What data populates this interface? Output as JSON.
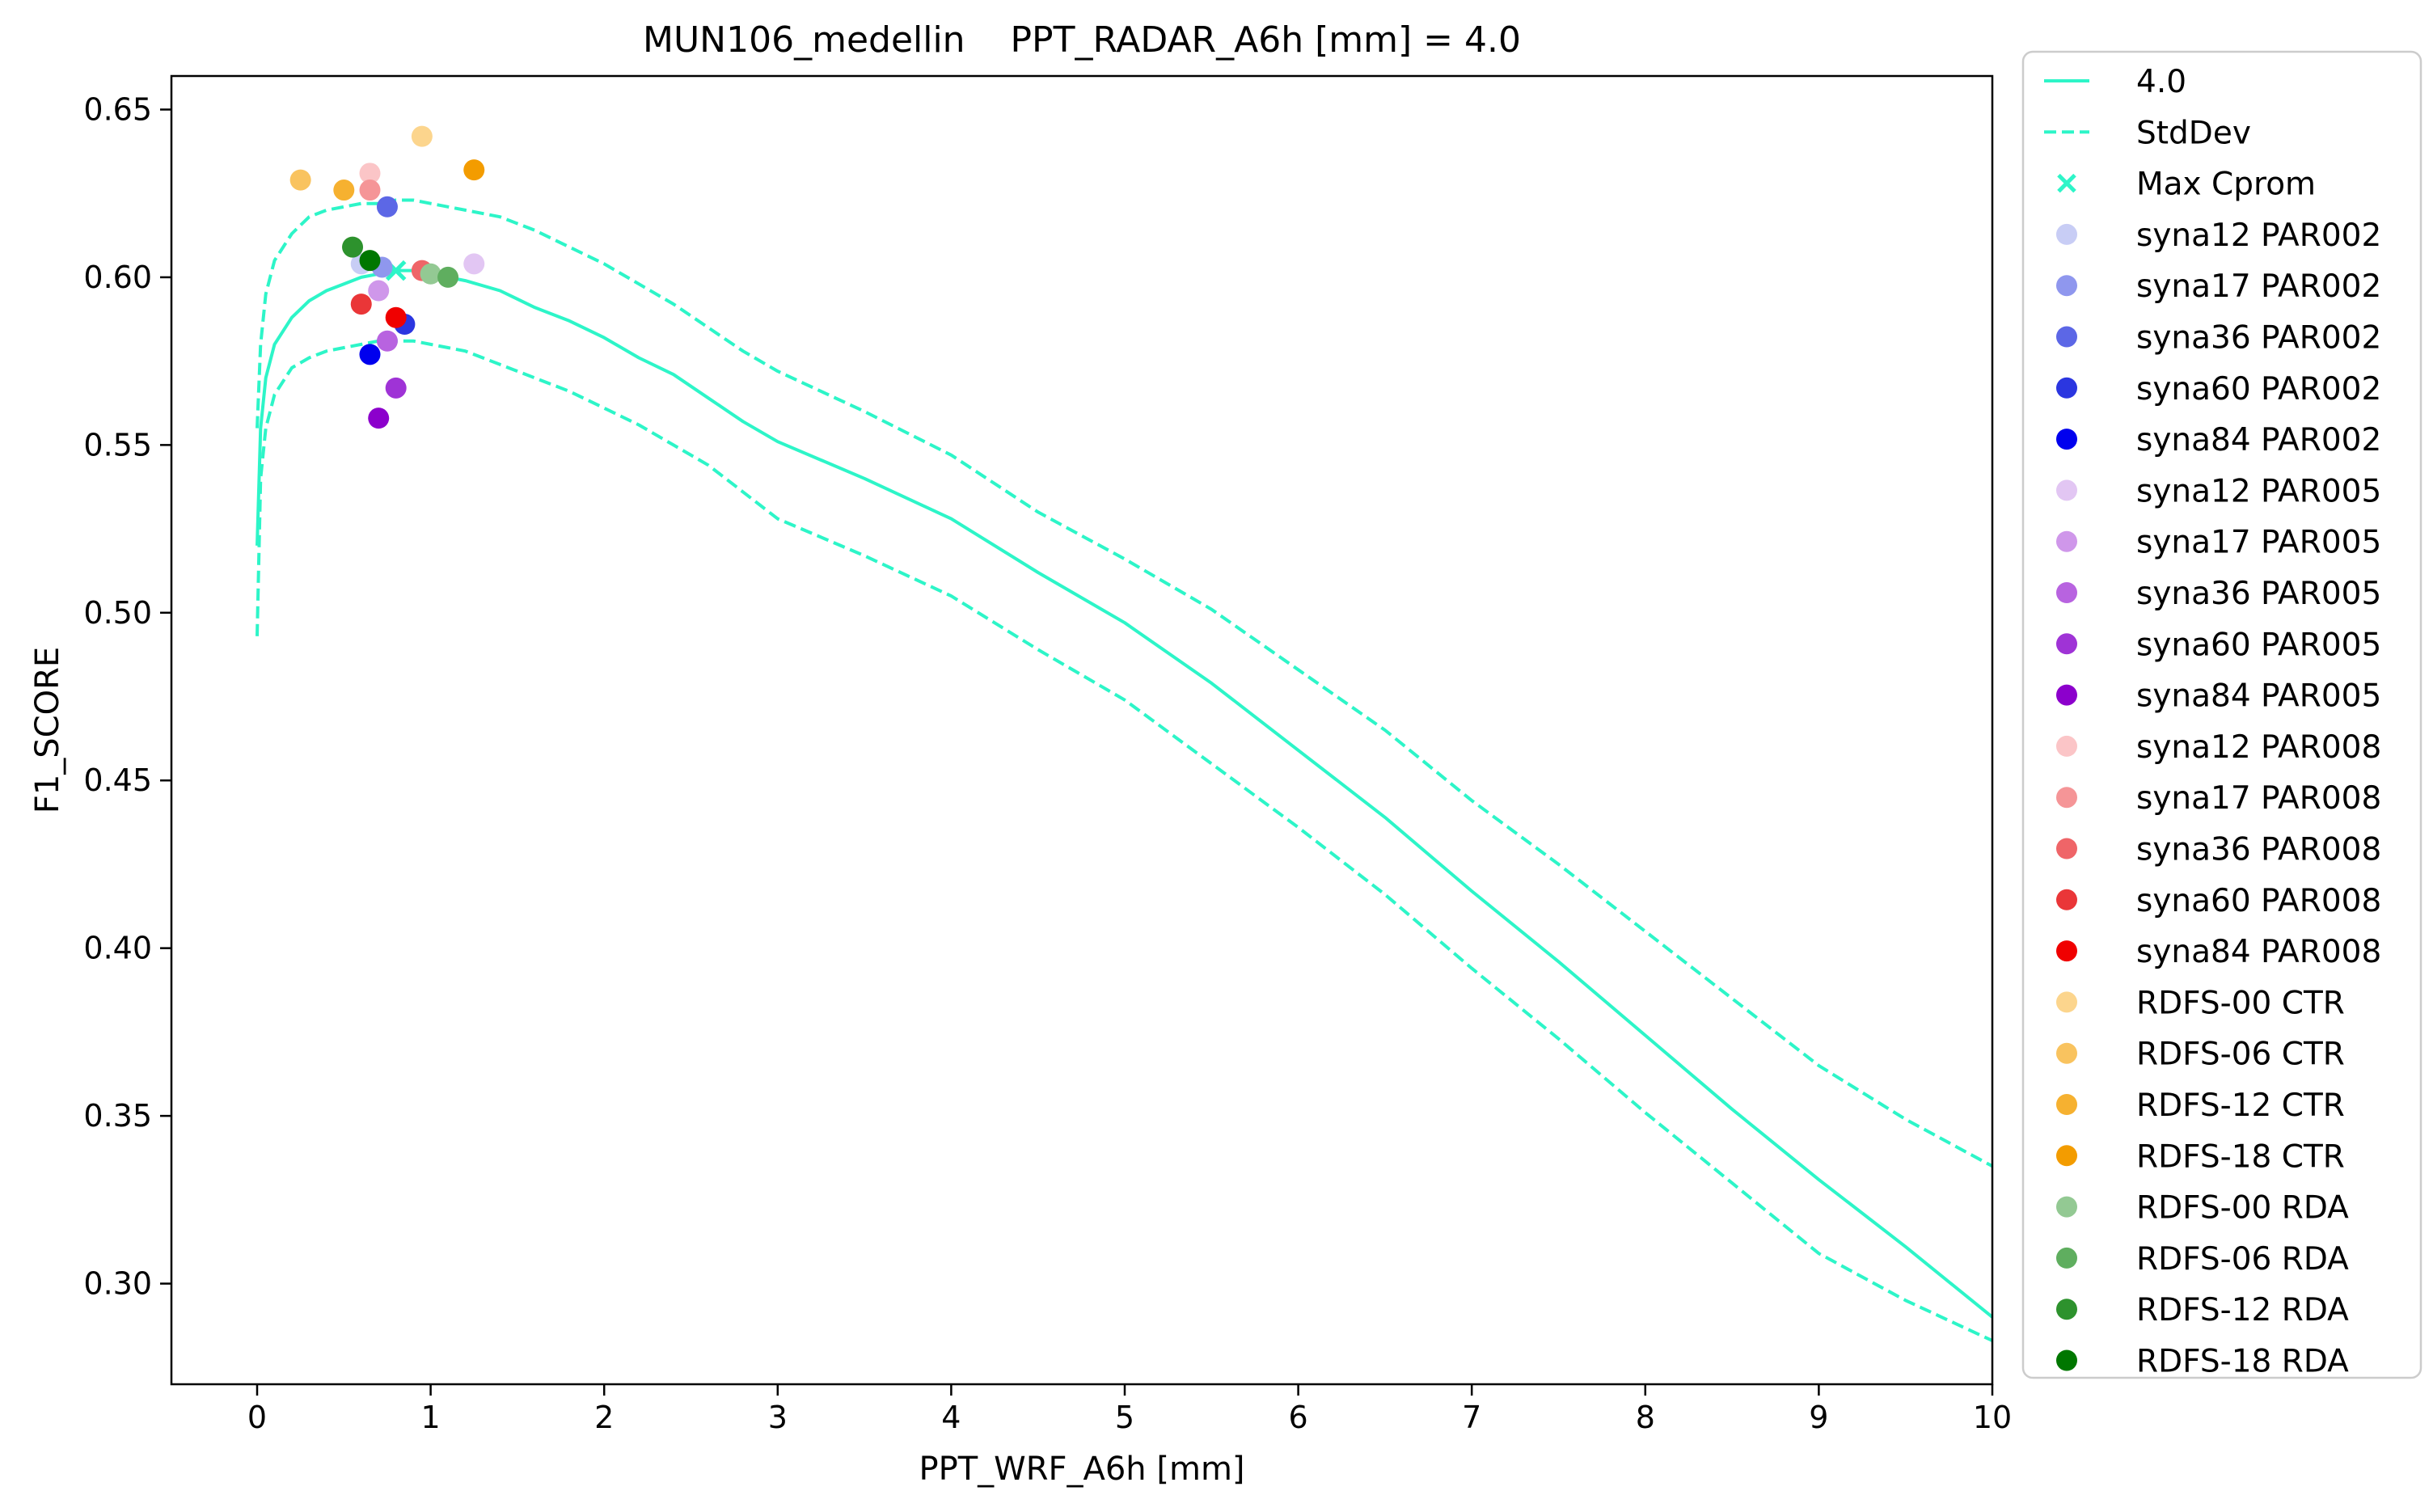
{
  "chart_data": {
    "type": "line",
    "title": "MUN106_medellin    PPT_RADAR_A6h [mm] = 4.0",
    "xlabel": "PPT_WRF_A6h [mm]",
    "ylabel": "F1_SCORE",
    "xlim": [
      -0.5,
      10
    ],
    "ylim": [
      0.27,
      0.66
    ],
    "xticks": [
      0,
      1,
      2,
      3,
      4,
      5,
      6,
      7,
      8,
      9,
      10
    ],
    "xtick_labels": [
      "0",
      "1",
      "2",
      "3",
      "4",
      "5",
      "6",
      "7",
      "8",
      "9",
      "10"
    ],
    "yticks": [
      0.3,
      0.35,
      0.4,
      0.45,
      0.5,
      0.55,
      0.6,
      0.65
    ],
    "ytick_labels": [
      "0.30",
      "0.35",
      "0.40",
      "0.45",
      "0.50",
      "0.55",
      "0.60",
      "0.65"
    ],
    "grid": false,
    "legend_position": "outside-right",
    "line_color": "#2df5c8",
    "series": [
      {
        "name": "4.0",
        "style": "solid",
        "x": [
          0,
          0.02,
          0.05,
          0.1,
          0.2,
          0.3,
          0.4,
          0.5,
          0.6,
          0.7,
          0.8,
          0.9,
          1.0,
          1.1,
          1.2,
          1.4,
          1.6,
          1.8,
          2.0,
          2.2,
          2.4,
          2.6,
          2.8,
          3.0,
          3.5,
          4.0,
          4.5,
          5.0,
          5.5,
          6.0,
          6.5,
          7.0,
          7.5,
          8.0,
          8.5,
          9.0,
          9.5,
          10.0
        ],
        "y": [
          0.52,
          0.555,
          0.57,
          0.58,
          0.588,
          0.593,
          0.596,
          0.598,
          0.6,
          0.601,
          0.602,
          0.602,
          0.601,
          0.6,
          0.599,
          0.596,
          0.591,
          0.587,
          0.582,
          0.576,
          0.571,
          0.564,
          0.557,
          0.551,
          0.54,
          0.528,
          0.512,
          0.497,
          0.479,
          0.459,
          0.439,
          0.417,
          0.396,
          0.374,
          0.352,
          0.331,
          0.311,
          0.29
        ]
      },
      {
        "name": "StdDev",
        "style": "dashed",
        "x": [
          0,
          0.02,
          0.05,
          0.1,
          0.2,
          0.3,
          0.4,
          0.5,
          0.6,
          0.7,
          0.8,
          0.9,
          1.0,
          1.1,
          1.2,
          1.4,
          1.6,
          1.8,
          2.0,
          2.2,
          2.4,
          2.6,
          2.8,
          3.0,
          3.5,
          4.0,
          4.5,
          5.0,
          5.5,
          6.0,
          6.5,
          7.0,
          7.5,
          8.0,
          8.5,
          9.0,
          9.5,
          10.0
        ],
        "y": [
          0.493,
          0.54,
          0.555,
          0.565,
          0.573,
          0.576,
          0.578,
          0.579,
          0.58,
          0.581,
          0.581,
          0.581,
          0.58,
          0.579,
          0.578,
          0.574,
          0.57,
          0.566,
          0.561,
          0.556,
          0.55,
          0.544,
          0.536,
          0.528,
          0.517,
          0.505,
          0.489,
          0.474,
          0.455,
          0.436,
          0.416,
          0.394,
          0.373,
          0.351,
          0.33,
          0.309,
          0.295,
          0.283
        ]
      },
      {
        "name": "",
        "style": "dashed",
        "x": [
          0,
          0.02,
          0.05,
          0.1,
          0.2,
          0.3,
          0.4,
          0.5,
          0.6,
          0.7,
          0.8,
          0.9,
          1.0,
          1.1,
          1.2,
          1.4,
          1.6,
          1.8,
          2.0,
          2.2,
          2.4,
          2.6,
          2.8,
          3.0,
          3.5,
          4.0,
          4.5,
          5.0,
          5.5,
          6.0,
          6.5,
          7.0,
          7.5,
          8.0,
          8.5,
          9.0,
          9.5,
          10.0
        ],
        "y": [
          0.555,
          0.58,
          0.595,
          0.605,
          0.613,
          0.618,
          0.62,
          0.621,
          0.622,
          0.622,
          0.623,
          0.623,
          0.622,
          0.621,
          0.62,
          0.618,
          0.614,
          0.609,
          0.604,
          0.598,
          0.592,
          0.585,
          0.578,
          0.572,
          0.56,
          0.547,
          0.53,
          0.516,
          0.501,
          0.483,
          0.465,
          0.444,
          0.425,
          0.405,
          0.385,
          0.365,
          0.349,
          0.335
        ]
      }
    ],
    "max_cprom": {
      "name": "Max Cprom",
      "x": 0.8,
      "y": 0.602
    },
    "scatter": [
      {
        "name": "syna12 PAR002",
        "color": "#c8cdf5",
        "x": 0.6,
        "y": 0.604
      },
      {
        "name": "syna17 PAR002",
        "color": "#8f97ee",
        "x": 0.72,
        "y": 0.603
      },
      {
        "name": "syna36 PAR002",
        "color": "#5c67e6",
        "x": 0.75,
        "y": 0.621
      },
      {
        "name": "syna60 PAR002",
        "color": "#2b36e0",
        "x": 0.85,
        "y": 0.586
      },
      {
        "name": "syna84 PAR002",
        "color": "#0000ee",
        "x": 0.65,
        "y": 0.577
      },
      {
        "name": "syna12 PAR005",
        "color": "#e2c6f3",
        "x": 1.25,
        "y": 0.604
      },
      {
        "name": "syna17 PAR005",
        "color": "#cf97ea",
        "x": 0.7,
        "y": 0.596
      },
      {
        "name": "syna36 PAR005",
        "color": "#b863e0",
        "x": 0.75,
        "y": 0.581
      },
      {
        "name": "syna60 PAR005",
        "color": "#9f33d6",
        "x": 0.8,
        "y": 0.567
      },
      {
        "name": "syna84 PAR005",
        "color": "#8c00cc",
        "x": 0.7,
        "y": 0.558
      },
      {
        "name": "syna12 PAR008",
        "color": "#fbc5c7",
        "x": 0.65,
        "y": 0.631
      },
      {
        "name": "syna17 PAR008",
        "color": "#f59597",
        "x": 0.65,
        "y": 0.626
      },
      {
        "name": "syna36 PAR008",
        "color": "#ef6568",
        "x": 0.95,
        "y": 0.602
      },
      {
        "name": "syna60 PAR008",
        "color": "#ea3638",
        "x": 0.6,
        "y": 0.592
      },
      {
        "name": "syna84 PAR008",
        "color": "#f00000",
        "x": 0.8,
        "y": 0.588
      },
      {
        "name": "RDFS-00 CTR",
        "color": "#fcd58d",
        "x": 0.95,
        "y": 0.642
      },
      {
        "name": "RDFS-06 CTR",
        "color": "#f9c35f",
        "x": 0.25,
        "y": 0.629
      },
      {
        "name": "RDFS-12 CTR",
        "color": "#f6b130",
        "x": 0.5,
        "y": 0.626
      },
      {
        "name": "RDFS-18 CTR",
        "color": "#f39c00",
        "x": 1.25,
        "y": 0.632
      },
      {
        "name": "RDFS-00 RDA",
        "color": "#93c993",
        "x": 1.0,
        "y": 0.601
      },
      {
        "name": "RDFS-06 RDA",
        "color": "#5fae5f",
        "x": 1.1,
        "y": 0.6
      },
      {
        "name": "RDFS-12 RDA",
        "color": "#2d922d",
        "x": 0.55,
        "y": 0.609
      },
      {
        "name": "RDFS-18 RDA",
        "color": "#007700",
        "x": 0.65,
        "y": 0.605
      }
    ]
  }
}
